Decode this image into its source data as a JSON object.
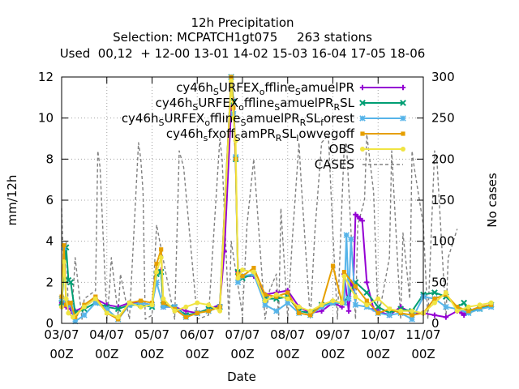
{
  "chart_data": {
    "type": "line",
    "title_lines": [
      "12h Precipitation",
      "Selection: MCPATCH1gt075     263 stations",
      "Used  00,12  + 12-00 13-01 14-02 15-03 16-04 17-05 18-06"
    ],
    "xlabel": "Date",
    "ylabel": "mm/12h",
    "y2label": "No cases",
    "ylim": [
      0,
      12
    ],
    "y2lim": [
      0,
      300
    ],
    "yticks": [
      "0",
      "2",
      "4",
      "6",
      "8",
      "10",
      "12"
    ],
    "y2ticks": [
      "0",
      "50",
      "100",
      "150",
      "200",
      "250",
      "300"
    ],
    "xticks_line1": [
      "03/07",
      "04/07",
      "05/07",
      "06/07",
      "07/07",
      "08/07",
      "09/07",
      "10/07",
      "11/07"
    ],
    "xticks_line2": [
      "00Z",
      "00Z",
      "00Z",
      "00Z",
      "00Z",
      "00Z",
      "00Z",
      "00Z",
      "00Z"
    ],
    "legend_position": "top-right",
    "grid": true,
    "legend": [
      {
        "parts": [
          [
            "cy46h",
            "n"
          ],
          [
            "S",
            "d"
          ],
          [
            "URFEX",
            "n"
          ],
          [
            "o",
            "d"
          ],
          [
            "ffline",
            "n"
          ],
          [
            "S",
            "d"
          ],
          [
            "amuelPR",
            "n"
          ]
        ],
        "color": "#9400d3",
        "marker": "plus",
        "dash": false
      },
      {
        "parts": [
          [
            "cy46h",
            "n"
          ],
          [
            "S",
            "d"
          ],
          [
            "URFEX",
            "n"
          ],
          [
            "o",
            "d"
          ],
          [
            "ffline",
            "n"
          ],
          [
            "S",
            "d"
          ],
          [
            "amuelPR",
            "n"
          ],
          [
            "R",
            "d"
          ],
          [
            "SL",
            "n"
          ]
        ],
        "color": "#009e73",
        "marker": "x",
        "dash": false
      },
      {
        "parts": [
          [
            "cy46h",
            "n"
          ],
          [
            "S",
            "d"
          ],
          [
            "URFEX",
            "n"
          ],
          [
            "o",
            "d"
          ],
          [
            "ffline",
            "n"
          ],
          [
            "S",
            "d"
          ],
          [
            "amuelPR",
            "n"
          ],
          [
            "R",
            "d"
          ],
          [
            "SL",
            "n"
          ],
          [
            "f",
            "d"
          ],
          [
            "orest",
            "n"
          ]
        ],
        "color": "#56b4e9",
        "marker": "star",
        "dash": false
      },
      {
        "parts": [
          [
            "cy46h",
            "n"
          ],
          [
            "s",
            "d"
          ],
          [
            "fxoff",
            "n"
          ],
          [
            "S",
            "d"
          ],
          [
            "amPR",
            "n"
          ],
          [
            "R",
            "d"
          ],
          [
            "SL",
            "n"
          ],
          [
            "l",
            "d"
          ],
          [
            "owvegoff",
            "n"
          ]
        ],
        "color": "#e69f00",
        "marker": "box",
        "dash": false
      },
      {
        "parts": [
          [
            "OBS",
            "n"
          ]
        ],
        "color": "#f0e442",
        "marker": "circle",
        "dash": false
      },
      {
        "parts": [
          [
            "CASES",
            "n"
          ]
        ],
        "color": "#808080",
        "marker": "none",
        "dash": true
      }
    ],
    "x_unit": "days since 03/07 00Z (tick spacing = 1 day)",
    "series": [
      {
        "name": "cy46h_SURFEX_offline_SamuelPR",
        "color": "#9400d3",
        "x": [
          0,
          0.05,
          0.1,
          0.15,
          0.2,
          0.25,
          0.3,
          0.5,
          0.75,
          1.0,
          1.25,
          1.5,
          1.75,
          2.0,
          2.1,
          2.2,
          2.25,
          2.5,
          2.75,
          3.0,
          3.25,
          3.5,
          3.6,
          3.75,
          3.8,
          3.85,
          3.9,
          4.0,
          4.25,
          4.5,
          4.75,
          5.0,
          5.25,
          5.5,
          5.75,
          6.0,
          6.2,
          6.25,
          6.35,
          6.4,
          6.45,
          6.5,
          6.55,
          6.6,
          6.65,
          6.75,
          6.9,
          7.0,
          7.25,
          7.5,
          7.75,
          8.0,
          8.25,
          8.5,
          8.75,
          8.85,
          8.9,
          8.95,
          9.0,
          9.25,
          9.5
        ],
        "y": [
          1.0,
          0.9,
          0.8,
          1.0,
          0.7,
          0.5,
          0.6,
          0.8,
          1.2,
          0.9,
          0.8,
          1.0,
          1.0,
          0.9,
          2.5,
          2.6,
          0.8,
          0.8,
          0.6,
          0.5,
          0.7,
          0.9,
          3.5,
          10.5,
          10.9,
          8.0,
          2.5,
          2.3,
          2.3,
          1.4,
          1.5,
          1.6,
          0.8,
          0.5,
          0.6,
          1.0,
          0.8,
          2.4,
          0.6,
          2.0,
          1.7,
          5.3,
          5.2,
          5.1,
          5.0,
          2.0,
          0.7,
          0.6,
          0.4,
          0.8,
          0.5,
          0.5,
          0.4,
          0.3,
          0.6,
          0.5,
          0.4,
          0.5,
          0.6,
          0.8,
          0.9
        ]
      },
      {
        "name": "cy46h_SURFEX_offline_SamuelPR_RSL",
        "color": "#009e73",
        "x": [
          0,
          0.1,
          0.15,
          0.2,
          0.3,
          0.5,
          0.75,
          1.0,
          1.25,
          1.5,
          1.75,
          2.0,
          2.1,
          2.2,
          2.25,
          2.5,
          2.75,
          3.0,
          3.25,
          3.5,
          3.75,
          3.8,
          3.85,
          3.9,
          4.0,
          4.25,
          4.5,
          4.75,
          5.0,
          5.25,
          5.5,
          5.75,
          6.0,
          6.25,
          6.5,
          6.75,
          7.0,
          7.25,
          7.5,
          7.75,
          8.0,
          8.25,
          8.5,
          8.75,
          8.9,
          9.0,
          9.25,
          9.5
        ],
        "y": [
          1.0,
          3.7,
          2.1,
          2.0,
          0.5,
          0.7,
          1.0,
          0.8,
          0.7,
          0.9,
          0.9,
          0.8,
          2.4,
          2.5,
          0.9,
          0.8,
          0.4,
          0.5,
          0.7,
          0.8,
          12.0,
          10.8,
          8.0,
          2.5,
          2.2,
          2.4,
          1.2,
          1.2,
          1.3,
          0.6,
          0.5,
          0.9,
          1.0,
          1.0,
          2.0,
          1.5,
          0.8,
          0.5,
          0.7,
          0.6,
          1.4,
          1.5,
          1.3,
          0.8,
          1.0,
          0.6,
          0.7,
          0.9
        ]
      },
      {
        "name": "cy46h_SURFEX_offline_SamuelPR_RSL_forest",
        "color": "#56b4e9",
        "x": [
          0,
          0.05,
          0.1,
          0.2,
          0.3,
          0.5,
          0.75,
          1.0,
          1.25,
          1.5,
          1.75,
          2.0,
          2.1,
          2.25,
          2.5,
          2.75,
          3.0,
          3.25,
          3.5,
          3.75,
          3.8,
          3.85,
          3.9,
          4.0,
          4.25,
          4.5,
          4.75,
          5.0,
          5.25,
          5.5,
          5.75,
          6.0,
          6.25,
          6.3,
          6.35,
          6.4,
          6.5,
          6.75,
          7.0,
          7.25,
          7.5,
          7.75,
          8.0,
          8.25,
          8.5,
          8.75,
          9.0,
          9.25,
          9.5
        ],
        "y": [
          1.2,
          3.7,
          1.0,
          0.9,
          0.1,
          0.4,
          1.0,
          0.7,
          0.2,
          0.9,
          1.0,
          0.9,
          2.0,
          0.8,
          0.8,
          0.3,
          0.5,
          0.6,
          0.8,
          12.0,
          10.2,
          8.1,
          2.0,
          2.3,
          2.4,
          0.9,
          0.6,
          1.0,
          0.5,
          0.4,
          0.8,
          1.0,
          1.0,
          4.3,
          1.2,
          4.1,
          0.9,
          0.8,
          0.5,
          0.4,
          0.5,
          0.2,
          1.3,
          1.2,
          0.8,
          0.7,
          0.5,
          0.7,
          0.8
        ]
      },
      {
        "name": "cy46h_sfxoff_SamPR_RSL_lowvegoff",
        "color": "#e69f00",
        "x": [
          0,
          0.05,
          0.1,
          0.15,
          0.2,
          0.3,
          0.5,
          0.75,
          1.0,
          1.25,
          1.5,
          1.75,
          2.0,
          2.1,
          2.2,
          2.25,
          2.5,
          2.75,
          3.0,
          3.25,
          3.5,
          3.75,
          3.8,
          3.85,
          3.9,
          4.0,
          4.25,
          4.5,
          4.75,
          5.0,
          5.25,
          5.5,
          5.75,
          6.0,
          6.2,
          6.25,
          6.5,
          6.75,
          7.0,
          7.25,
          7.5,
          7.75,
          8.0,
          8.25,
          8.5,
          8.75,
          9.0,
          9.25,
          9.5
        ],
        "y": [
          1.3,
          3.8,
          0.9,
          1.0,
          1.0,
          0.3,
          0.9,
          1.3,
          0.5,
          0.2,
          1.0,
          1.1,
          1.0,
          2.9,
          3.6,
          1.0,
          0.7,
          0.3,
          0.5,
          0.6,
          0.8,
          12.0,
          10.5,
          8.0,
          2.4,
          2.3,
          2.7,
          1.4,
          1.3,
          1.5,
          0.5,
          0.4,
          0.9,
          2.8,
          1.0,
          2.5,
          1.8,
          1.1,
          0.5,
          0.7,
          0.5,
          0.4,
          0.5,
          1.2,
          1.4,
          0.8,
          0.6,
          0.8,
          0.9
        ]
      },
      {
        "name": "OBS",
        "color": "#f0e442",
        "x": [
          0,
          0.05,
          0.1,
          0.15,
          0.25,
          0.5,
          0.75,
          1.0,
          1.25,
          1.5,
          1.75,
          2.0,
          2.1,
          2.2,
          2.25,
          2.5,
          2.75,
          3.0,
          3.25,
          3.5,
          3.75,
          3.8,
          3.85,
          3.9,
          4.0,
          4.25,
          4.5,
          4.75,
          5.0,
          5.25,
          5.5,
          5.75,
          6.0,
          6.2,
          6.25,
          6.5,
          6.75,
          7.0,
          7.25,
          7.5,
          7.75,
          8.0,
          8.25,
          8.5,
          8.75,
          9.0,
          9.25,
          9.5
        ],
        "y": [
          0.8,
          3.0,
          1.2,
          0.5,
          0.3,
          0.8,
          1.2,
          0.5,
          0.3,
          1.0,
          0.8,
          0.9,
          2.5,
          3.2,
          1.2,
          0.6,
          0.8,
          1.0,
          0.9,
          0.6,
          11.8,
          10.0,
          8.9,
          2.2,
          2.6,
          2.5,
          1.1,
          1.4,
          1.2,
          0.8,
          0.6,
          0.9,
          1.1,
          1.0,
          2.3,
          1.3,
          0.9,
          1.2,
          0.7,
          0.6,
          0.6,
          0.5,
          1.0,
          1.5,
          0.6,
          0.8,
          0.9,
          1.0
        ]
      },
      {
        "name": "CASES",
        "color": "#808080",
        "axis": "y2",
        "x": [
          0,
          0.05,
          0.1,
          0.15,
          0.25,
          0.3,
          0.45,
          0.5,
          0.75,
          0.8,
          0.85,
          1.0,
          1.05,
          1.1,
          1.25,
          1.3,
          1.5,
          1.7,
          1.75,
          1.8,
          1.85,
          2.0,
          2.1,
          2.5,
          2.6,
          2.7,
          3.0,
          3.25,
          3.5,
          3.55,
          3.7,
          3.75,
          4.0,
          4.1,
          4.25,
          4.5,
          4.6,
          4.75,
          4.8,
          4.85,
          5.0,
          5.1,
          5.25,
          5.3,
          5.5,
          5.6,
          5.75,
          5.9,
          6.0,
          6.1,
          6.25,
          6.3,
          6.5,
          6.55,
          6.7,
          6.75,
          6.9,
          7.0,
          7.25,
          7.3,
          7.5,
          7.55,
          7.7,
          7.75,
          7.8,
          8.0,
          8.1,
          8.25,
          8.3,
          8.5,
          8.55,
          8.75
        ],
        "y": [
          140,
          55,
          100,
          10,
          30,
          80,
          5,
          30,
          40,
          210,
          190,
          5,
          35,
          80,
          10,
          60,
          5,
          220,
          200,
          160,
          5,
          10,
          120,
          5,
          210,
          190,
          5,
          10,
          225,
          200,
          5,
          100,
          10,
          120,
          200,
          5,
          40,
          60,
          5,
          140,
          5,
          100,
          220,
          170,
          5,
          110,
          220,
          230,
          110,
          5,
          215,
          220,
          5,
          120,
          150,
          230,
          160,
          5,
          80,
          210,
          5,
          110,
          30,
          210,
          190,
          120,
          5,
          210,
          200,
          5,
          80,
          115
        ]
      }
    ]
  }
}
